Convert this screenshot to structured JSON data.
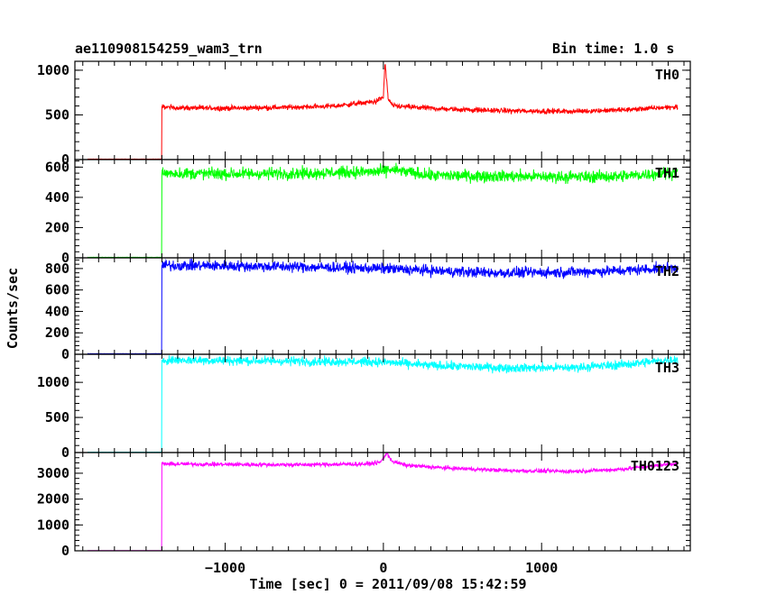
{
  "header": {
    "object": "ae110908154259_wam3_trn",
    "bin_time": "Bin time: 1.0 s"
  },
  "axes": {
    "ylabel": "Counts/sec",
    "xlabel": "Time [sec] 0 = 2011/09/08 15:42:59"
  },
  "chart_data": {
    "type": "line",
    "shared_x": true,
    "x_range": [
      -1950,
      1940
    ],
    "x_ticks": [
      -1000,
      0,
      1000
    ],
    "x_tick_labels": [
      "−1000",
      "0",
      "1000"
    ],
    "panels": [
      {
        "name": "TH0",
        "color": "#ff0000",
        "ylim": [
          0,
          1100
        ],
        "y_ticks": [
          0,
          500,
          1000
        ],
        "pre_level": 5,
        "onset_x": -1400,
        "profile_x": [
          -1400,
          -1300,
          -1000,
          -600,
          -300,
          -150,
          -50,
          0,
          10,
          20,
          30,
          60,
          150,
          400,
          800,
          1200,
          1500,
          1850
        ],
        "profile_y": [
          590,
          580,
          575,
          585,
          600,
          630,
          650,
          700,
          1080,
          900,
          680,
          600,
          590,
          565,
          545,
          540,
          555,
          590
        ],
        "noise": 20
      },
      {
        "name": "TH1",
        "color": "#00ff00",
        "ylim": [
          0,
          650
        ],
        "y_ticks": [
          0,
          200,
          400,
          600
        ],
        "pre_level": 3,
        "onset_x": -1400,
        "profile_x": [
          -1400,
          -1000,
          -500,
          0,
          30,
          300,
          800,
          1200,
          1500,
          1850
        ],
        "profile_y": [
          560,
          555,
          560,
          570,
          585,
          545,
          540,
          535,
          540,
          565
        ],
        "noise": 28
      },
      {
        "name": "TH2",
        "color": "#0000ff",
        "ylim": [
          0,
          900
        ],
        "y_ticks": [
          0,
          200,
          400,
          600,
          800
        ],
        "pre_level": 5,
        "onset_x": -1400,
        "profile_x": [
          -1400,
          -1000,
          -500,
          0,
          300,
          700,
          1100,
          1500,
          1850
        ],
        "profile_y": [
          830,
          825,
          815,
          800,
          780,
          760,
          765,
          780,
          810
        ],
        "noise": 35
      },
      {
        "name": "TH3",
        "color": "#00ffff",
        "ylim": [
          0,
          1400
        ],
        "y_ticks": [
          0,
          500,
          1000
        ],
        "pre_level": 5,
        "onset_x": -1400,
        "profile_x": [
          -1400,
          -1000,
          -500,
          0,
          300,
          800,
          1200,
          1500,
          1850
        ],
        "profile_y": [
          1320,
          1310,
          1300,
          1290,
          1240,
          1205,
          1210,
          1250,
          1330
        ],
        "noise": 45
      },
      {
        "name": "TH0123",
        "color": "#ff00ff",
        "ylim": [
          0,
          3800
        ],
        "y_ticks": [
          0,
          1000,
          2000,
          3000
        ],
        "pre_level": 10,
        "onset_x": -1400,
        "profile_x": [
          -1400,
          -1000,
          -500,
          -100,
          -20,
          20,
          60,
          150,
          400,
          800,
          1200,
          1500,
          1850
        ],
        "profile_y": [
          3360,
          3340,
          3330,
          3360,
          3420,
          3760,
          3450,
          3300,
          3200,
          3100,
          3070,
          3150,
          3380
        ],
        "noise": 55
      }
    ]
  }
}
